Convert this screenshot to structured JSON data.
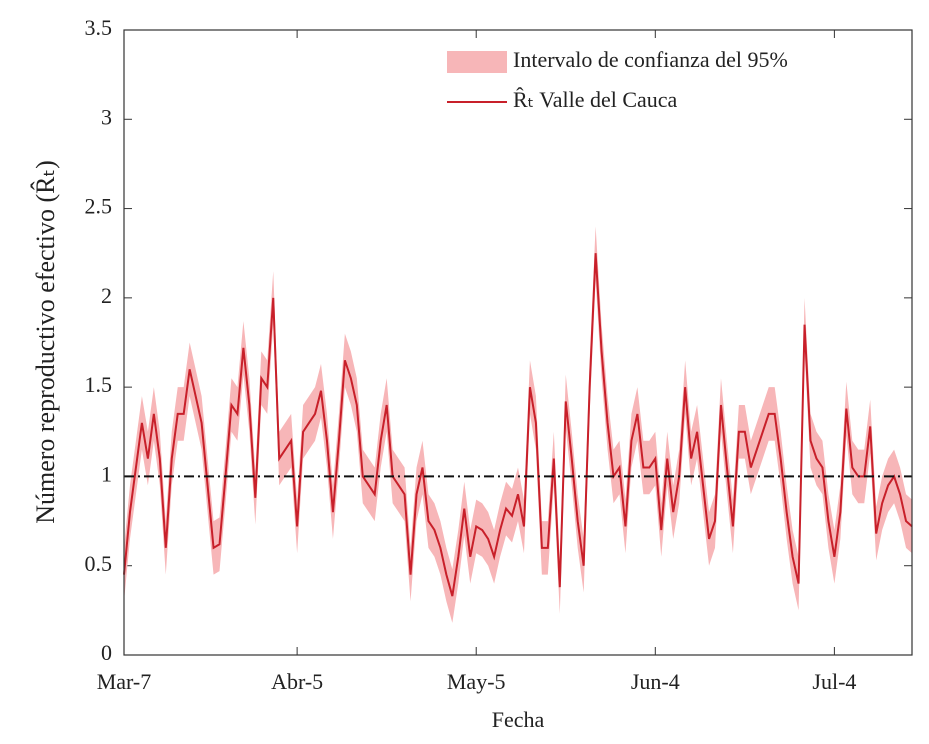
{
  "chart_data": {
    "type": "line",
    "x_label": "Fecha",
    "y_label": "Número reproductivo efectivo (R̂ₜ)",
    "categories": [
      "Mar-7",
      null,
      null,
      null,
      null,
      null,
      null,
      null,
      null,
      null,
      null,
      null,
      null,
      null,
      null,
      null,
      null,
      null,
      null,
      null,
      null,
      null,
      null,
      null,
      null,
      null,
      null,
      null,
      null,
      "Abr-5",
      null,
      null,
      null,
      null,
      null,
      null,
      null,
      null,
      null,
      null,
      null,
      null,
      null,
      null,
      null,
      null,
      null,
      null,
      null,
      null,
      null,
      null,
      null,
      null,
      null,
      null,
      null,
      null,
      null,
      "May-5",
      null,
      null,
      null,
      null,
      null,
      null,
      null,
      null,
      null,
      null,
      null,
      null,
      null,
      null,
      null,
      null,
      null,
      null,
      null,
      null,
      null,
      null,
      null,
      null,
      null,
      null,
      null,
      null,
      null,
      "Jun-4",
      null,
      null,
      null,
      null,
      null,
      null,
      null,
      null,
      null,
      null,
      null,
      null,
      null,
      null,
      null,
      null,
      null,
      null,
      null,
      null,
      null,
      null,
      null,
      null,
      null,
      null,
      null,
      null,
      null,
      "Jul-4",
      null,
      null,
      null,
      null,
      null,
      null,
      null,
      null,
      null,
      null,
      null,
      null,
      null
    ],
    "series": [
      {
        "name": "Intervalo de confianza del 95%",
        "color": "#f7b6b8",
        "lower": [
          0.3,
          0.65,
          0.9,
          1.15,
          0.95,
          1.2,
          0.95,
          0.45,
          0.95,
          1.2,
          1.2,
          1.45,
          1.3,
          1.15,
          0.8,
          0.45,
          0.47,
          0.85,
          1.25,
          1.2,
          1.57,
          1.25,
          0.73,
          1.4,
          1.35,
          1.85,
          0.95,
          1.0,
          1.05,
          0.57,
          1.1,
          1.15,
          1.2,
          1.33,
          1.05,
          0.65,
          1.05,
          1.5,
          1.4,
          1.25,
          0.85,
          0.8,
          0.75,
          1.05,
          1.25,
          0.85,
          0.8,
          0.75,
          0.3,
          0.75,
          0.9,
          0.6,
          0.55,
          0.45,
          0.3,
          0.18,
          0.4,
          0.67,
          0.4,
          0.57,
          0.55,
          0.5,
          0.4,
          0.55,
          0.67,
          0.63,
          0.75,
          0.57,
          1.35,
          1.15,
          0.45,
          0.45,
          0.95,
          0.23,
          1.27,
          0.95,
          0.6,
          0.35,
          1.35,
          2.1,
          1.55,
          1.15,
          0.85,
          0.9,
          0.57,
          1.05,
          1.2,
          0.9,
          0.9,
          0.95,
          0.55,
          0.95,
          0.65,
          0.85,
          1.35,
          0.95,
          1.1,
          0.8,
          0.5,
          0.6,
          1.25,
          0.9,
          0.57,
          1.1,
          1.1,
          0.9,
          1.0,
          1.1,
          1.2,
          1.2,
          0.95,
          0.65,
          0.4,
          0.25,
          1.7,
          1.05,
          0.95,
          0.9,
          0.6,
          0.4,
          0.65,
          1.23,
          0.9,
          0.85,
          0.85,
          1.13,
          0.53,
          0.7,
          0.8,
          0.85,
          0.75,
          0.6,
          0.57
        ],
        "upper": [
          0.6,
          0.95,
          1.2,
          1.45,
          1.25,
          1.5,
          1.25,
          0.75,
          1.25,
          1.5,
          1.5,
          1.75,
          1.6,
          1.45,
          1.1,
          0.75,
          0.77,
          1.15,
          1.55,
          1.5,
          1.87,
          1.55,
          1.03,
          1.7,
          1.65,
          2.15,
          1.25,
          1.3,
          1.35,
          0.87,
          1.4,
          1.45,
          1.5,
          1.63,
          1.35,
          0.95,
          1.35,
          1.8,
          1.7,
          1.55,
          1.15,
          1.1,
          1.05,
          1.35,
          1.55,
          1.15,
          1.1,
          1.05,
          0.6,
          1.05,
          1.2,
          0.9,
          0.85,
          0.75,
          0.6,
          0.48,
          0.7,
          0.97,
          0.7,
          0.87,
          0.85,
          0.8,
          0.7,
          0.85,
          0.97,
          0.93,
          1.05,
          0.87,
          1.65,
          1.45,
          0.75,
          0.75,
          1.25,
          0.53,
          1.57,
          1.25,
          0.9,
          0.65,
          1.65,
          2.4,
          1.85,
          1.45,
          1.15,
          1.2,
          0.87,
          1.35,
          1.5,
          1.2,
          1.2,
          1.25,
          0.85,
          1.25,
          0.95,
          1.15,
          1.65,
          1.25,
          1.4,
          1.1,
          0.8,
          0.9,
          1.55,
          1.2,
          0.87,
          1.4,
          1.4,
          1.2,
          1.3,
          1.4,
          1.5,
          1.5,
          1.25,
          0.95,
          0.7,
          0.55,
          2.0,
          1.35,
          1.25,
          1.2,
          0.9,
          0.7,
          0.95,
          1.53,
          1.2,
          1.15,
          1.15,
          1.43,
          0.83,
          1.0,
          1.1,
          1.15,
          1.05,
          0.9,
          0.87
        ]
      },
      {
        "name": "R̂ₜ Valle del Cauca",
        "color": "#c8202a",
        "values": [
          0.45,
          0.8,
          1.05,
          1.3,
          1.1,
          1.35,
          1.1,
          0.6,
          1.1,
          1.35,
          1.35,
          1.6,
          1.45,
          1.3,
          0.95,
          0.6,
          0.62,
          1.0,
          1.4,
          1.35,
          1.72,
          1.4,
          0.88,
          1.55,
          1.5,
          2.0,
          1.1,
          1.15,
          1.2,
          0.72,
          1.25,
          1.3,
          1.35,
          1.48,
          1.2,
          0.8,
          1.2,
          1.65,
          1.55,
          1.4,
          1.0,
          0.95,
          0.9,
          1.2,
          1.4,
          1.0,
          0.95,
          0.9,
          0.45,
          0.9,
          1.05,
          0.75,
          0.7,
          0.6,
          0.45,
          0.33,
          0.55,
          0.82,
          0.55,
          0.72,
          0.7,
          0.65,
          0.55,
          0.7,
          0.82,
          0.78,
          0.9,
          0.72,
          1.5,
          1.3,
          0.6,
          0.6,
          1.1,
          0.38,
          1.42,
          1.1,
          0.75,
          0.5,
          1.5,
          2.25,
          1.7,
          1.3,
          1.0,
          1.05,
          0.72,
          1.2,
          1.35,
          1.05,
          1.05,
          1.1,
          0.7,
          1.1,
          0.8,
          1.0,
          1.5,
          1.1,
          1.25,
          0.95,
          0.65,
          0.75,
          1.4,
          1.05,
          0.72,
          1.25,
          1.25,
          1.05,
          1.15,
          1.25,
          1.35,
          1.35,
          1.1,
          0.8,
          0.55,
          0.4,
          1.85,
          1.2,
          1.1,
          1.05,
          0.75,
          0.55,
          0.8,
          1.38,
          1.05,
          1.0,
          1.0,
          1.28,
          0.68,
          0.85,
          0.95,
          1.0,
          0.9,
          0.75,
          0.72
        ]
      }
    ],
    "reference_line": {
      "value": 1,
      "color": "#111111"
    },
    "ylim": [
      0,
      3.5
    ],
    "yticks": [
      0,
      0.5,
      1,
      1.5,
      2,
      2.5,
      3,
      3.5
    ],
    "grid": false,
    "legend": "upper-right"
  }
}
